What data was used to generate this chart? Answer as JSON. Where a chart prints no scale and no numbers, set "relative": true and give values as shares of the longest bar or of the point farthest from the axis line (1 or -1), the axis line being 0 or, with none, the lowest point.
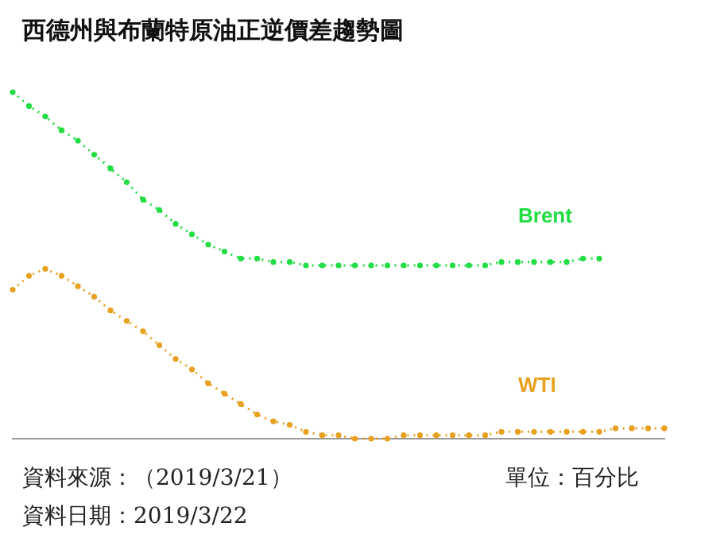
{
  "chart_data": {
    "type": "line",
    "title": "西德州與布蘭特原油正逆價差趨勢圖",
    "relative": true,
    "tick_labels": false,
    "grid": false,
    "legend": false,
    "marker": "circle",
    "line_style": "dotted",
    "categories": [
      null,
      null,
      null,
      null,
      null,
      null,
      null,
      null,
      null,
      null,
      null,
      null,
      null,
      null,
      null,
      null,
      null,
      null,
      null,
      null,
      null,
      null,
      null,
      null,
      null,
      null,
      null,
      null,
      null,
      null,
      null,
      null,
      null,
      null,
      null,
      null,
      null,
      null,
      null,
      null,
      null
    ],
    "series": [
      {
        "name": "Brent",
        "color": "#22dd44",
        "values": [
          1.0,
          0.96,
          0.93,
          0.89,
          0.86,
          0.82,
          0.78,
          0.74,
          0.69,
          0.66,
          0.62,
          0.59,
          0.56,
          0.54,
          0.52,
          0.52,
          0.51,
          0.51,
          0.5,
          0.5,
          0.5,
          0.5,
          0.5,
          0.5,
          0.5,
          0.5,
          0.5,
          0.5,
          0.5,
          0.5,
          0.51,
          0.51,
          0.51,
          0.51,
          0.51,
          0.52,
          0.52,
          null,
          null,
          null,
          null
        ]
      },
      {
        "name": "WTI",
        "color": "#e8a020",
        "values": [
          0.43,
          0.47,
          0.49,
          0.47,
          0.44,
          0.41,
          0.37,
          0.34,
          0.31,
          0.27,
          0.23,
          0.2,
          0.16,
          0.13,
          0.1,
          0.07,
          0.05,
          0.04,
          0.02,
          0.01,
          0.01,
          0.0,
          0.0,
          0.0,
          0.01,
          0.01,
          0.01,
          0.01,
          0.01,
          0.01,
          0.02,
          0.02,
          0.02,
          0.02,
          0.02,
          0.02,
          0.02,
          0.03,
          0.03,
          0.03,
          0.03
        ]
      }
    ],
    "annotations": [
      "資料來源：（2019/3/21）",
      "單位：百分比",
      "資料日期：2019/3/22"
    ]
  }
}
